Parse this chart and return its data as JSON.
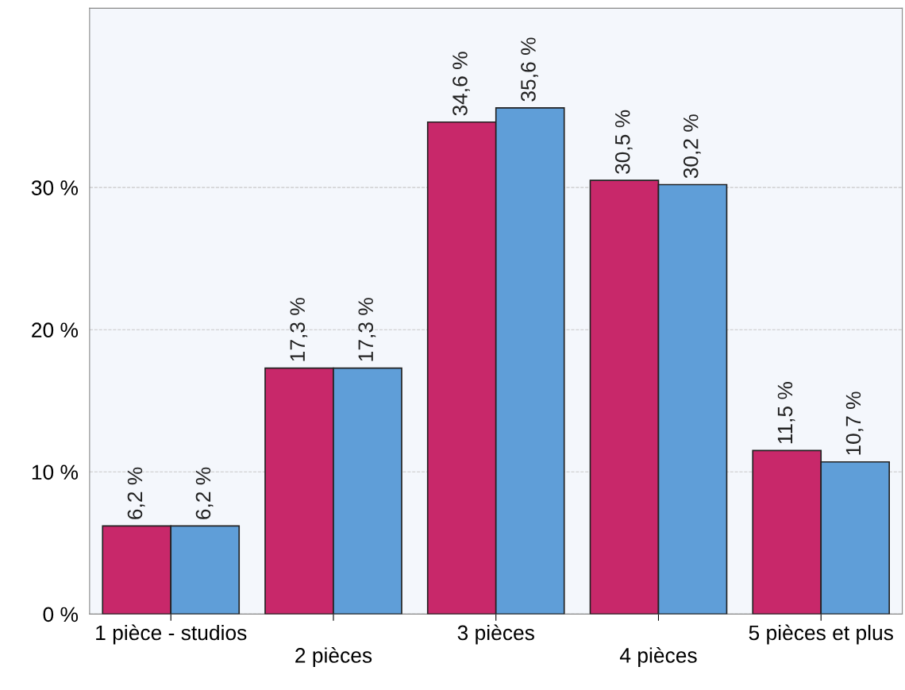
{
  "chart_data": {
    "type": "bar",
    "categories": [
      "1 pièce - studios",
      "2 pièces",
      "3 pièces",
      "4 pièces",
      "5 pièces et plus"
    ],
    "series": [
      {
        "color": "#c8286a",
        "values": [
          6.2,
          17.3,
          34.6,
          30.5,
          11.5
        ],
        "value_labels": [
          "6,2 %",
          "17,3 %",
          "34,6 %",
          "30,5 %",
          "11,5 %"
        ]
      },
      {
        "color": "#5f9ed8",
        "values": [
          6.2,
          17.3,
          35.6,
          30.2,
          10.7
        ],
        "value_labels": [
          "6,2 %",
          "17,3 %",
          "35,6 %",
          "30,2 %",
          "10,7 %"
        ]
      }
    ],
    "ylim": [
      0,
      42.6
    ],
    "yticks": [
      {
        "value": 0,
        "label": "0 %"
      },
      {
        "value": 10,
        "label": "10 %"
      },
      {
        "value": 20,
        "label": "20 %"
      },
      {
        "value": 30,
        "label": "30 %"
      }
    ],
    "grid": "y",
    "legend": false
  }
}
